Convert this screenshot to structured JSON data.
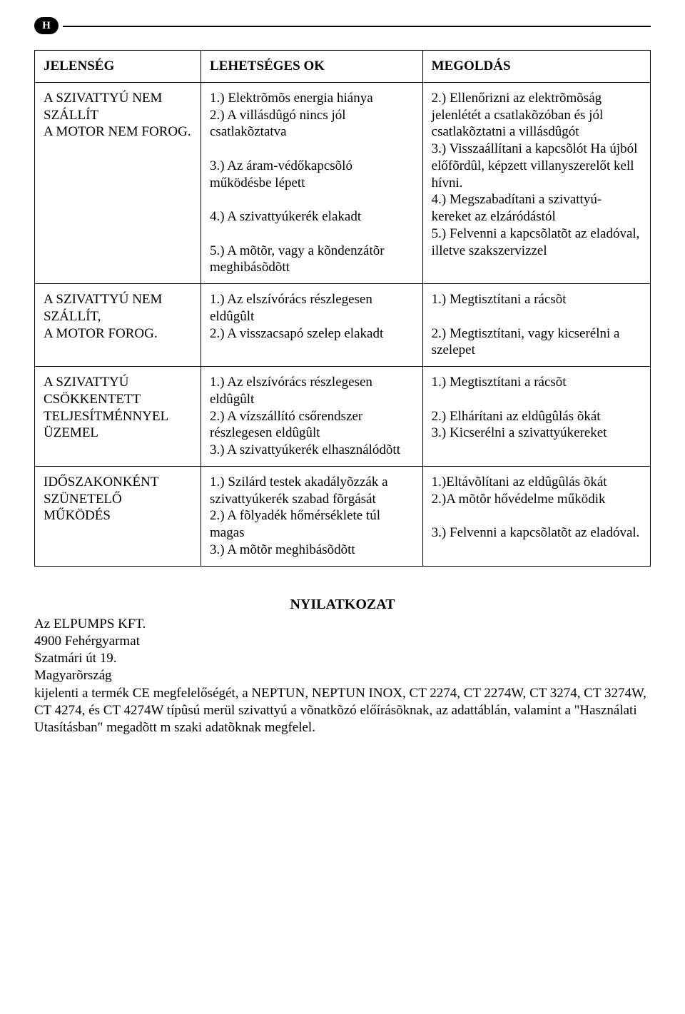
{
  "badge": "H",
  "table": {
    "header": {
      "c1": "JELENSÉG",
      "c2": "LEHETSÉGES OK",
      "c3": "MEGOLDÁS"
    },
    "rows": [
      {
        "c1": "A SZIVATTYÚ NEM SZÁLLÍT\nA MOTOR NEM FOROG.",
        "c2": "1.) Elektrõmõs energia hiánya\n2.) A villásdûgó nincs jól csatlakõztatva\n\n3.) Az áram-védőkapcsõló működésbe lépett\n\n4.) A szivattyúkerék elakadt\n\n5.) A mõtõr, vagy a kõndenzátõr meghibásõdõtt",
        "c3": "2.) Ellenőrizni az elektrõmõság jelenlétét a csatlakõzóban és jól csatlakõztatni a villásdûgót\n3.) Visszaállítani a kapcsõlót Ha újból előfõrdûl, képzett villanyszerelőt kell hívni.\n4.) Megszabadítani a szivattyú-kereket az elzáródástól\n5.) Felvenni a kapcsõlatõt az eladóval, illetve szakszervizzel"
      },
      {
        "c1": "A SZIVATTYÚ NEM SZÁLLÍT,\nA MOTOR FOROG.",
        "c2": "1.) Az elszívórács részlegesen eldûgûlt\n2.) A visszacsapó szelep elakadt",
        "c3": "1.) Megtisztítani a rácsõt\n\n2.) Megtisztítani, vagy kicserélni a szelepet"
      },
      {
        "c1": "A SZIVATTYÚ CSÖKKENTETT TELJESÍTMÉNNYEL ÜZEMEL",
        "c2": "1.) Az elszívórács részlegesen eldûgûlt\n2.) A vízszállító csőrendszer részlegesen eldûgûlt\n3.) A szivattyúkerék elhasználódõtt",
        "c3": "1.) Megtisztítani a rácsõt\n\n2.) Elhárítani az eldûgûlás õkát\n3.) Kicserélni a szivattyúkereket"
      },
      {
        "c1": "IDŐSZAKONKÉNT SZÜNETELŐ MŰKÖDÉS",
        "c2": "1.) Szilárd testek akadályõzzák a szivattyúkerék szabad fõrgását\n2.) A fõlyadék hőmérséklete túl magas\n3.) A mõtõr meghibásõdõtt",
        "c3": "1.)Eltávõlítani az eldûgûlás õkát\n2.)A mõtõr hővédelme működik\n\n3.) Felvenni a kapcsõlatõt az eladóval."
      }
    ]
  },
  "declaration": {
    "title": "NYILATKOZAT",
    "line1": "Az ELPUMPS KFT.",
    "line2": "4900 Fehérgyarmat",
    "line3": "Szatmári út 19.",
    "line4": "Magyarõrszág",
    "body": "kijelenti a termék CE megfelelőségét, a NEPTUN, NEPTUN  INOX, CT 2274,  CT 2274W, CT 3274, CT 3274W, CT 4274, és CT 4274W típûsú merül  szivattyú  a võnatkõzó előírásõknak,  az adattáblán, valamint a \"Használati Utasításban\"  megadõtt m  szaki adatõknak megfelel."
  }
}
